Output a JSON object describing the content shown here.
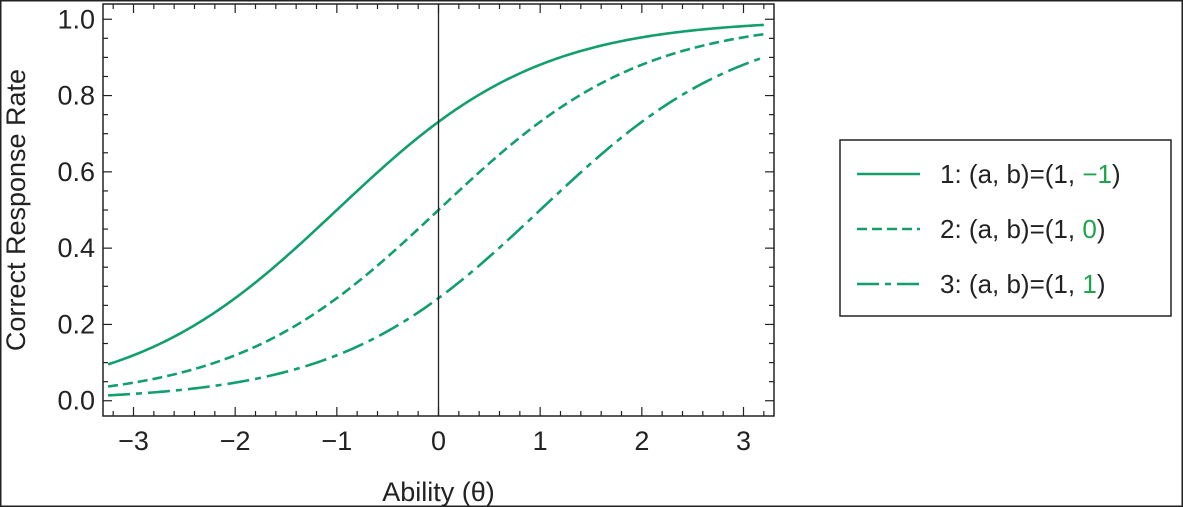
{
  "chart_data": {
    "type": "line",
    "xlabel": "Ability (θ)",
    "ylabel": "Correct Response Rate",
    "xlim": [
      -3.3,
      3.3
    ],
    "ylim": [
      -0.04,
      1.04
    ],
    "x_ticks": [
      -3,
      -2,
      -1,
      0,
      1,
      2,
      3
    ],
    "x_tick_labels": [
      "−3",
      "−2",
      "−1",
      "0",
      "1",
      "2",
      "3"
    ],
    "y_ticks": [
      0.0,
      0.2,
      0.4,
      0.6,
      0.8,
      1.0
    ],
    "y_tick_labels": [
      "0.0",
      "0.2",
      "0.4",
      "0.6",
      "0.8",
      "1.0"
    ],
    "vertical_line_x": 0,
    "grid": false,
    "legend_position": "right",
    "line_color": "#129f6c",
    "highlight_color": "#1fa34d",
    "series": [
      {
        "name": "1: (a, b)=(1, −1)",
        "legend_prefix": "1: (a, b)=(1, ",
        "legend_highlight": "−1",
        "legend_suffix": ")",
        "a": 1,
        "b": -1,
        "dash": "solid",
        "x": [
          -3.25,
          -3,
          -2.5,
          -2,
          -1.5,
          -1,
          -0.5,
          0,
          0.5,
          1,
          1.5,
          2,
          2.5,
          3,
          3.2
        ],
        "y": [
          0.095,
          0.119,
          0.182,
          0.269,
          0.378,
          0.5,
          0.622,
          0.731,
          0.818,
          0.881,
          0.924,
          0.953,
          0.971,
          0.982,
          0.985
        ]
      },
      {
        "name": "2: (a, b)=(1, 0)",
        "legend_prefix": "2: (a, b)=(1, ",
        "legend_highlight": "0",
        "legend_suffix": ")",
        "a": 1,
        "b": 0,
        "dash": "dashed",
        "x": [
          -3.25,
          -3,
          -2.5,
          -2,
          -1.5,
          -1,
          -0.5,
          0,
          0.5,
          1,
          1.5,
          2,
          2.5,
          3,
          3.2
        ],
        "y": [
          0.037,
          0.047,
          0.076,
          0.119,
          0.182,
          0.269,
          0.378,
          0.5,
          0.622,
          0.731,
          0.818,
          0.881,
          0.924,
          0.953,
          0.961
        ]
      },
      {
        "name": "3: (a, b)=(1, 1)",
        "legend_prefix": "3: (a, b)=(1, ",
        "legend_highlight": "1",
        "legend_suffix": ")",
        "a": 1,
        "b": 1,
        "dash": "dashdot",
        "x": [
          -3.25,
          -3,
          -2.5,
          -2,
          -1.5,
          -1,
          -0.5,
          0,
          0.5,
          1,
          1.5,
          2,
          2.5,
          3,
          3.2
        ],
        "y": [
          0.014,
          0.018,
          0.029,
          0.047,
          0.076,
          0.119,
          0.182,
          0.269,
          0.378,
          0.5,
          0.622,
          0.731,
          0.818,
          0.881,
          0.9
        ]
      }
    ]
  }
}
